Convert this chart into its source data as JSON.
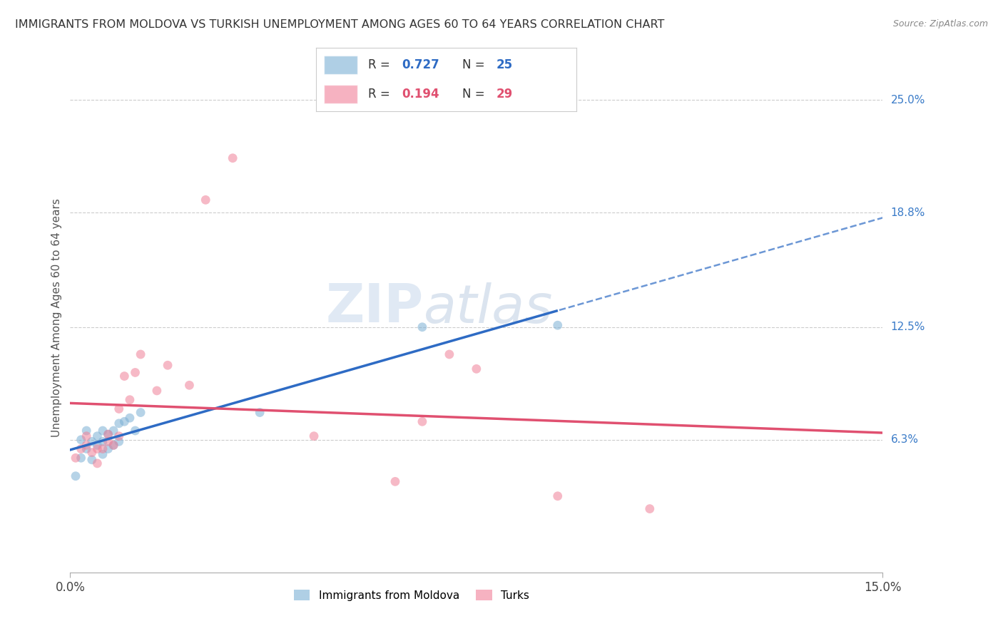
{
  "title": "IMMIGRANTS FROM MOLDOVA VS TURKISH UNEMPLOYMENT AMONG AGES 60 TO 64 YEARS CORRELATION CHART",
  "source": "Source: ZipAtlas.com",
  "ylabel": "Unemployment Among Ages 60 to 64 years",
  "x_range": [
    0.0,
    0.15
  ],
  "y_range": [
    -0.01,
    0.27
  ],
  "y_ticks": [
    0.063,
    0.125,
    0.188,
    0.25
  ],
  "y_tick_labels": [
    "6.3%",
    "12.5%",
    "18.8%",
    "25.0%"
  ],
  "x_tick_labels": [
    "0.0%",
    "15.0%"
  ],
  "moldova_x": [
    0.001,
    0.002,
    0.002,
    0.003,
    0.003,
    0.004,
    0.004,
    0.005,
    0.005,
    0.006,
    0.006,
    0.006,
    0.007,
    0.007,
    0.008,
    0.008,
    0.009,
    0.009,
    0.01,
    0.011,
    0.012,
    0.013,
    0.035,
    0.065,
    0.09
  ],
  "moldova_y": [
    0.043,
    0.053,
    0.063,
    0.058,
    0.068,
    0.052,
    0.062,
    0.06,
    0.065,
    0.055,
    0.062,
    0.068,
    0.058,
    0.066,
    0.06,
    0.068,
    0.062,
    0.072,
    0.073,
    0.075,
    0.068,
    0.078,
    0.078,
    0.125,
    0.126
  ],
  "turks_x": [
    0.001,
    0.002,
    0.003,
    0.003,
    0.004,
    0.005,
    0.005,
    0.006,
    0.007,
    0.007,
    0.008,
    0.009,
    0.009,
    0.01,
    0.011,
    0.012,
    0.013,
    0.016,
    0.018,
    0.022,
    0.025,
    0.03,
    0.045,
    0.06,
    0.065,
    0.07,
    0.075,
    0.09,
    0.107
  ],
  "turks_y": [
    0.053,
    0.058,
    0.06,
    0.065,
    0.056,
    0.058,
    0.05,
    0.058,
    0.062,
    0.066,
    0.06,
    0.065,
    0.08,
    0.098,
    0.085,
    0.1,
    0.11,
    0.09,
    0.104,
    0.093,
    0.195,
    0.218,
    0.065,
    0.04,
    0.073,
    0.11,
    0.102,
    0.032,
    0.025
  ],
  "moldova_color": "#7bafd4",
  "turks_color": "#f08098",
  "moldova_line_color": "#2e6bc4",
  "turks_line_color": "#e05070",
  "background_color": "#ffffff",
  "grid_color": "#cccccc",
  "title_color": "#333333",
  "right_axis_color": "#3a7bc8",
  "scatter_alpha": 0.55,
  "scatter_size": 85
}
